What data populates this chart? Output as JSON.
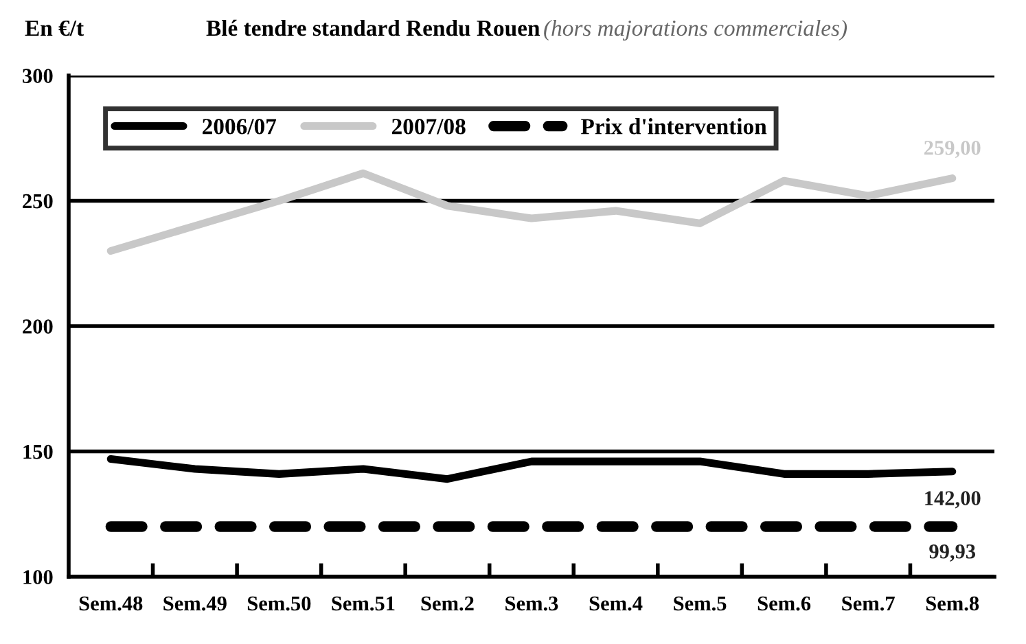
{
  "chart_data": {
    "type": "line",
    "title": "Blé tendre standard Rendu Rouen",
    "subtitle": "(hors majorations commerciales)",
    "ylabel": "En €/t",
    "categories": [
      "Sem.48",
      "Sem.49",
      "Sem.50",
      "Sem.51",
      "Sem.2",
      "Sem.3",
      "Sem.4",
      "Sem.5",
      "Sem.6",
      "Sem.7",
      "Sem.8"
    ],
    "series": [
      {
        "name": "2006/07",
        "color": "#000000",
        "line_style": "solid",
        "values": [
          147,
          143,
          141,
          143,
          139,
          146,
          146,
          146,
          141,
          141,
          142
        ],
        "value_labels": [
          null,
          null,
          null,
          null,
          null,
          null,
          null,
          null,
          null,
          null,
          "142,00"
        ]
      },
      {
        "name": "2007/08",
        "color": "#c8c8c8",
        "line_style": "solid",
        "values": [
          230,
          240,
          250,
          261,
          248,
          243,
          246,
          241,
          258,
          252,
          259
        ],
        "value_labels": [
          null,
          null,
          null,
          null,
          null,
          null,
          null,
          null,
          null,
          null,
          "259,00"
        ]
      },
      {
        "name": "Prix d'intervention",
        "color": "#000000",
        "line_style": "dashed",
        "values": [
          120,
          120,
          120,
          120,
          120,
          120,
          120,
          120,
          120,
          120,
          120
        ]
      }
    ],
    "annotations": [
      "99,93"
    ],
    "ylim": [
      100,
      300
    ],
    "yticks": [
      100,
      150,
      200,
      250,
      300
    ],
    "grid": "y",
    "legend": "top left",
    "marker": "none"
  }
}
